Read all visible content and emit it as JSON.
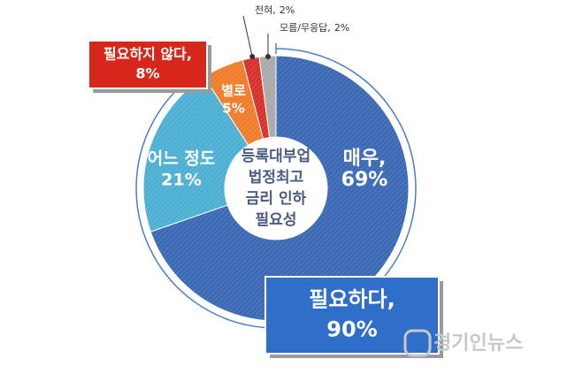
{
  "chart_data": {
    "type": "donut",
    "center_label": [
      "등록대부업",
      "법정최고",
      "금리 인하",
      "필요성"
    ],
    "categories": [
      "매우,",
      "어느 정도",
      "별로",
      "전혀,",
      "모름/무응답,"
    ],
    "values": [
      69,
      21,
      5,
      2,
      2
    ],
    "value_labels": [
      "69%",
      "21%",
      "5%",
      "2%",
      "2%"
    ],
    "colors": [
      "#3b69b4",
      "#4db0d3",
      "#ef7d2a",
      "#d8312b",
      "#a9a9a9"
    ],
    "groups": {
      "names": [
        "필요하다,",
        "필요하지 않다,"
      ],
      "values": [
        90,
        8
      ],
      "value_labels": [
        "90%",
        "8%"
      ],
      "colors": [
        "#2f6fca",
        "#d7271c"
      ]
    },
    "watermark": "경기인뉴스"
  }
}
